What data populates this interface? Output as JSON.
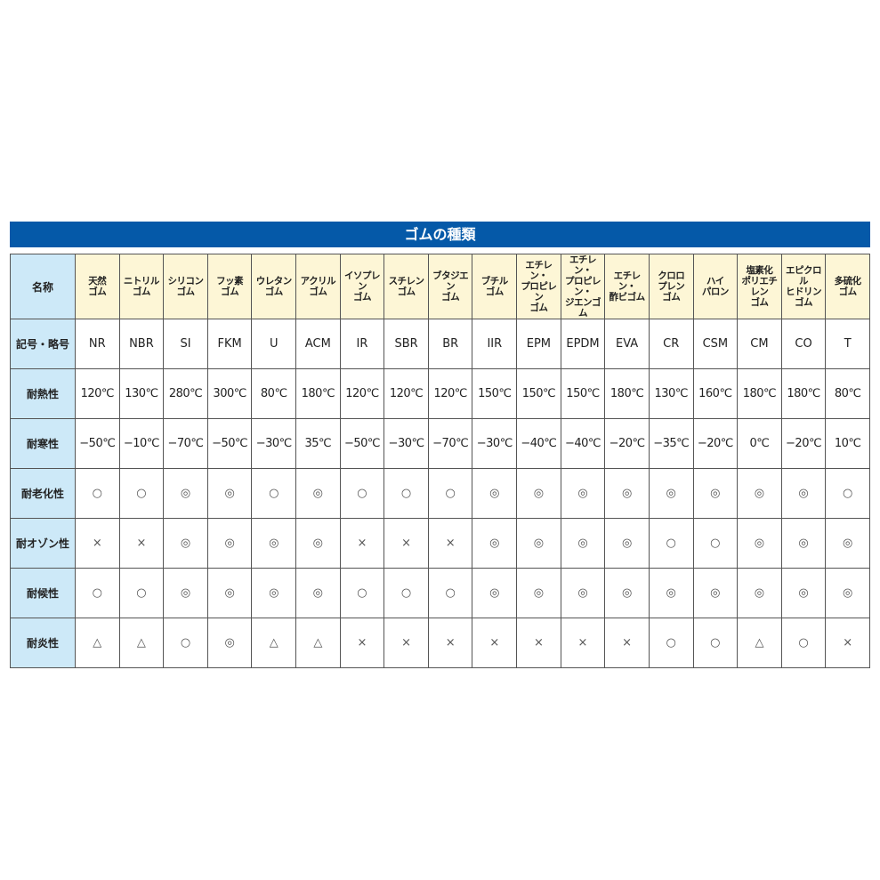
{
  "title": "ゴムの種類",
  "row_headers": [
    "名称",
    "記号・略号",
    "耐熱性",
    "耐寒性",
    "耐老化性",
    "耐オゾン性",
    "耐候性",
    "耐炎性"
  ],
  "names": [
    "天然\nゴム",
    "ニトリル\nゴム",
    "シリコン\nゴム",
    "フッ素\nゴム",
    "ウレタン\nゴム",
    "アクリル\nゴム",
    "イソプレン\nゴム",
    "スチレン\nゴム",
    "ブタジエン\nゴム",
    "ブチル\nゴム",
    "エチレン・\nプロピレン\nゴム",
    "エチレン・\nプロピレン・\nジエンゴム",
    "エチレン・\n酢ビゴム",
    "クロロ\nプレン\nゴム",
    "ハイ\nパロン",
    "塩素化\nポリエチレン\nゴム",
    "エピクロル\nヒドリン\nゴム",
    "多硫化\nゴム"
  ],
  "codes": [
    "NR",
    "NBR",
    "SI",
    "FKM",
    "U",
    "ACM",
    "IR",
    "SBR",
    "BR",
    "IIR",
    "EPM",
    "EPDM",
    "EVA",
    "CR",
    "CSM",
    "CM",
    "CO",
    "T"
  ],
  "heat": [
    "120℃",
    "130℃",
    "280℃",
    "300℃",
    "80℃",
    "180℃",
    "120℃",
    "120℃",
    "120℃",
    "150℃",
    "150℃",
    "150℃",
    "180℃",
    "130℃",
    "160℃",
    "180℃",
    "180℃",
    "80℃"
  ],
  "cold": [
    "−50℃",
    "−10℃",
    "−70℃",
    "−50℃",
    "−30℃",
    "35℃",
    "−50℃",
    "−30℃",
    "−70℃",
    "−30℃",
    "−40℃",
    "−40℃",
    "−20℃",
    "−35℃",
    "−20℃",
    "0℃",
    "−20℃",
    "10℃"
  ],
  "aging": [
    "○",
    "○",
    "◎",
    "◎",
    "○",
    "◎",
    "○",
    "○",
    "○",
    "◎",
    "◎",
    "◎",
    "◎",
    "◎",
    "◎",
    "◎",
    "◎",
    "○"
  ],
  "ozone": [
    "×",
    "×",
    "◎",
    "◎",
    "◎",
    "◎",
    "×",
    "×",
    "×",
    "◎",
    "◎",
    "◎",
    "◎",
    "○",
    "○",
    "◎",
    "◎",
    "◎"
  ],
  "weather": [
    "○",
    "○",
    "◎",
    "◎",
    "◎",
    "◎",
    "○",
    "○",
    "○",
    "◎",
    "◎",
    "◎",
    "◎",
    "◎",
    "◎",
    "◎",
    "◎",
    "◎"
  ],
  "flame": [
    "△",
    "△",
    "○",
    "◎",
    "△",
    "△",
    "×",
    "×",
    "×",
    "×",
    "×",
    "×",
    "×",
    "○",
    "○",
    "△",
    "○",
    "×"
  ],
  "colors": {
    "title_bg": "#0559a8",
    "row_header_bg": "#cde9f8",
    "name_bg": "#fdf6d6"
  }
}
